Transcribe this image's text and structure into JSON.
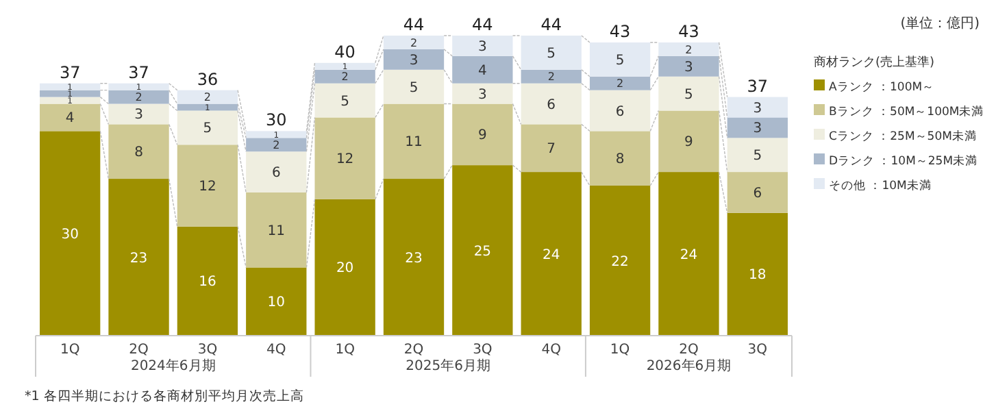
{
  "chart_data": {
    "type": "bar",
    "stacked": true,
    "data_labels": true,
    "categories": [
      "1Q",
      "2Q",
      "3Q",
      "4Q",
      "1Q",
      "2Q",
      "3Q",
      "4Q",
      "1Q",
      "2Q",
      "3Q"
    ],
    "series": [
      {
        "name": "Aランク ：100M～",
        "color": "#9e9000",
        "values": [
          30,
          23,
          16,
          10,
          20,
          23,
          25,
          24,
          22,
          24,
          18
        ]
      },
      {
        "name": "Bランク ：50M～100M未満",
        "color": "#cfc993",
        "values": [
          4,
          8,
          12,
          11,
          12,
          11,
          9,
          7,
          8,
          9,
          6
        ]
      },
      {
        "name": "Cランク ：25M～50M未満",
        "color": "#efeee0",
        "values": [
          1,
          3,
          5,
          6,
          5,
          5,
          3,
          6,
          6,
          5,
          5
        ]
      },
      {
        "name": "Dランク ：10M～25M未満",
        "color": "#aab9cc",
        "values": [
          1,
          2,
          1,
          2,
          2,
          3,
          4,
          2,
          2,
          3,
          3
        ]
      },
      {
        "name": "その他 ：10M未満",
        "color": "#e3eaf3",
        "values": [
          1,
          1,
          2,
          1,
          1,
          2,
          3,
          5,
          5,
          2,
          3
        ]
      }
    ],
    "totals": [
      "37",
      "37",
      "36",
      "30",
      "40",
      "44",
      "44",
      "44",
      "43",
      "43",
      "37"
    ],
    "legend": "right",
    "legend_title": "商材ランク(売上基準)",
    "annotations": [
      "(単位：億円)",
      "2024年6月期",
      "2025年6月期",
      "2026年6月期",
      "*1 各四半期における各商材別平均月次売上高"
    ]
  }
}
